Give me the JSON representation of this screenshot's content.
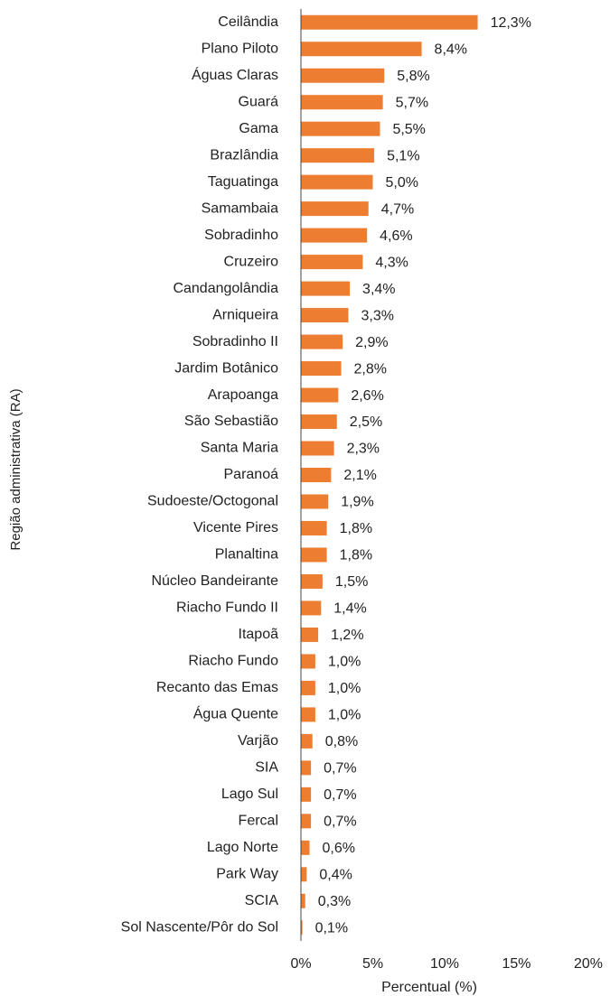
{
  "chart_data": {
    "type": "barh",
    "categories": [
      "Ceilândia",
      "Plano Piloto",
      "Águas Claras",
      "Guará",
      "Gama",
      "Brazlândia",
      "Taguatinga",
      "Samambaia",
      "Sobradinho",
      "Cruzeiro",
      "Candangolândia",
      "Arniqueira",
      "Sobradinho II",
      "Jardim Botânico",
      "Arapoanga",
      "São Sebastião",
      "Santa Maria",
      "Paranoá",
      "Sudoeste/Octogonal",
      "Vicente Pires",
      "Planaltina",
      "Núcleo Bandeirante",
      "Riacho Fundo II",
      "Itapoã",
      "Riacho Fundo",
      "Recanto das Emas",
      "Água Quente",
      "Varjão",
      "SIA",
      "Lago Sul",
      "Fercal",
      "Lago Norte",
      "Park Way",
      "SCIA",
      "Sol Nascente/Pôr do Sol"
    ],
    "values": [
      12.3,
      8.4,
      5.8,
      5.7,
      5.5,
      5.1,
      5.0,
      4.7,
      4.6,
      4.3,
      3.4,
      3.3,
      2.9,
      2.8,
      2.6,
      2.5,
      2.3,
      2.1,
      1.9,
      1.8,
      1.8,
      1.5,
      1.4,
      1.2,
      1.0,
      1.0,
      1.0,
      0.8,
      0.7,
      0.7,
      0.7,
      0.6,
      0.4,
      0.3,
      0.1
    ],
    "value_labels": [
      "12,3%",
      "8,4%",
      "5,8%",
      "5,7%",
      "5,5%",
      "5,1%",
      "5,0%",
      "4,7%",
      "4,6%",
      "4,3%",
      "3,4%",
      "3,3%",
      "2,9%",
      "2,8%",
      "2,6%",
      "2,5%",
      "2,3%",
      "2,1%",
      "1,9%",
      "1,8%",
      "1,8%",
      "1,5%",
      "1,4%",
      "1,2%",
      "1,0%",
      "1,0%",
      "1,0%",
      "0,8%",
      "0,7%",
      "0,7%",
      "0,7%",
      "0,6%",
      "0,4%",
      "0,3%",
      "0,1%"
    ],
    "color": "#ed7d31",
    "xlim": [
      0,
      20
    ],
    "xticks": [
      {
        "value": 0,
        "label": "0%"
      },
      {
        "value": 5,
        "label": "5%"
      },
      {
        "value": 10,
        "label": "10%"
      },
      {
        "value": 15,
        "label": "15%"
      },
      {
        "value": 20,
        "label": "20%"
      }
    ],
    "x_label": "Percentual (%)",
    "y_label": "Região administrativa (RA)",
    "grid": false
  }
}
